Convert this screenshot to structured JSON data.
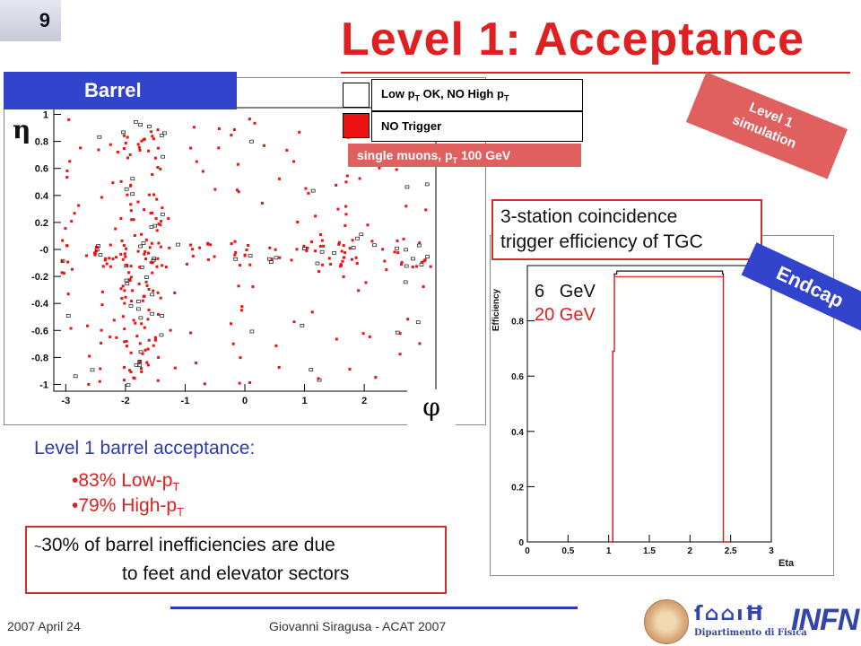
{
  "slide": {
    "number": "9",
    "title": "Level 1: Acceptance"
  },
  "barrel": {
    "tag": "Barrel",
    "eta_symbol": "η",
    "phi_symbol": "φ",
    "legend": {
      "low_pt_label": "Low p",
      "low_pt_sub": "T",
      "low_pt_rest": " OK, NO High p",
      "low_pt_sub2": "T",
      "no_trigger_label": "NO Trigger",
      "single_muons": "single muons, p",
      "single_muons_sub": "T",
      "single_muons_rest": " 100 GeV"
    },
    "y_ticks": [
      "1",
      "0.8",
      "0.6",
      "0.4",
      "0.2",
      "-0",
      "-0.2",
      "-0.4",
      "-0.6",
      "-0.8",
      "-1"
    ],
    "x_ticks": [
      "-3",
      "-2",
      "-1",
      "0",
      "1",
      "2"
    ]
  },
  "level1_banner": {
    "line1": "Level 1",
    "line2": "simulation"
  },
  "acceptance": {
    "title": "Level 1 barrel acceptance:",
    "low_pt": "•83% Low-p",
    "low_pt_sub": "T",
    "high_pt": "•79% High-p",
    "high_pt_sub": "T"
  },
  "inefficiency_note": {
    "tilde": "~",
    "line1": "30% of barrel inefficiencies are due",
    "line2": "to feet and elevator sectors"
  },
  "tgc": {
    "line1": "3-station coincidence",
    "line2": "trigger efficiency of TGC"
  },
  "endcap": {
    "tag": "Endcap",
    "legend_6": "6   GeV",
    "legend_20": "20 GeV",
    "y_label": "Efficiency",
    "x_label": "Eta",
    "y_ticks": [
      "0",
      "0.2",
      "0.4",
      "0.6",
      "0.8"
    ],
    "x_ticks": [
      "0",
      "0.5",
      "1",
      "1.5",
      "2",
      "2.5",
      "3"
    ]
  },
  "footer": {
    "date": "2007 April 24",
    "author": "Giovanni Siragusa - ACAT 2007",
    "dept": "Dipartimento di Fisica",
    "infn": "INFN"
  },
  "colors": {
    "accent_red": "#e02020",
    "blue": "#3344cc",
    "banner_red": "#e06060"
  },
  "chart_data": [
    {
      "type": "scatter",
      "title": "",
      "xlabel": "φ",
      "ylabel": "η",
      "xlim": [
        -3.2,
        3.2
      ],
      "ylim": [
        -1.05,
        1.05
      ],
      "series": [
        {
          "name": "Low pT OK, NO High pT"
        },
        {
          "name": "NO Trigger"
        }
      ]
    },
    {
      "type": "line",
      "title": "",
      "xlabel": "Eta",
      "ylabel": "Efficiency",
      "xlim": [
        0,
        3
      ],
      "ylim": [
        0,
        1
      ],
      "series": [
        {
          "name": "6   GeV",
          "x": [
            1.0,
            1.05,
            1.07,
            1.1,
            1.5,
            2.0,
            2.4,
            2.41,
            2.5
          ],
          "values": [
            0,
            0.69,
            0.97,
            0.98,
            0.98,
            0.98,
            0.97,
            0,
            0
          ]
        },
        {
          "name": "20 GeV",
          "x": [
            1.0,
            1.05,
            1.07,
            1.1,
            1.5,
            2.0,
            2.4,
            2.41,
            2.5
          ],
          "values": [
            0,
            0.69,
            0.96,
            0.96,
            0.96,
            0.96,
            0.96,
            0,
            0
          ]
        }
      ]
    }
  ]
}
